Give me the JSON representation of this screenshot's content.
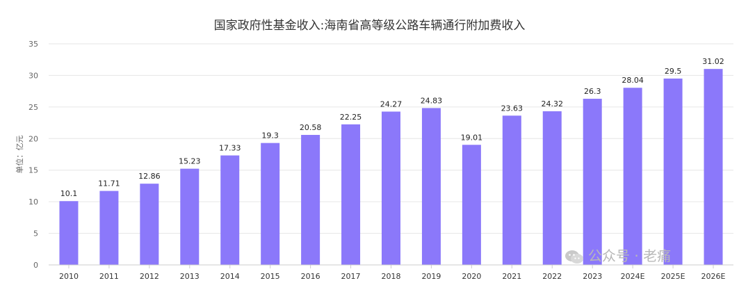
{
  "chart_data": {
    "type": "bar",
    "title": "国家政府性基金收入:海南省高等级公路车辆通行附加费收入",
    "ylabel": "单位：亿元",
    "xlabel": "",
    "categories": [
      "2010",
      "2011",
      "2012",
      "2013",
      "2014",
      "2015",
      "2016",
      "2017",
      "2018",
      "2019",
      "2020",
      "2021",
      "2022",
      "2023",
      "2024E",
      "2025E",
      "2026E"
    ],
    "values": [
      10.1,
      11.71,
      12.86,
      15.23,
      17.33,
      19.3,
      20.58,
      22.25,
      24.27,
      24.83,
      19.01,
      23.63,
      24.32,
      26.3,
      28.04,
      29.5,
      31.02
    ],
    "value_labels": [
      "10.1",
      "11.71",
      "12.86",
      "15.23",
      "17.33",
      "19.3",
      "20.58",
      "22.25",
      "24.27",
      "24.83",
      "19.01",
      "23.63",
      "24.32",
      "26.3",
      "28.04",
      "29.5",
      "31.02"
    ],
    "ylim": [
      0,
      35
    ],
    "yticks": [
      0,
      5,
      10,
      15,
      20,
      25,
      30,
      35
    ],
    "grid": true,
    "bar_color": "#8b78fa"
  },
  "watermark": {
    "text": "公众号 · 老痛",
    "icon": "wechat-icon"
  }
}
